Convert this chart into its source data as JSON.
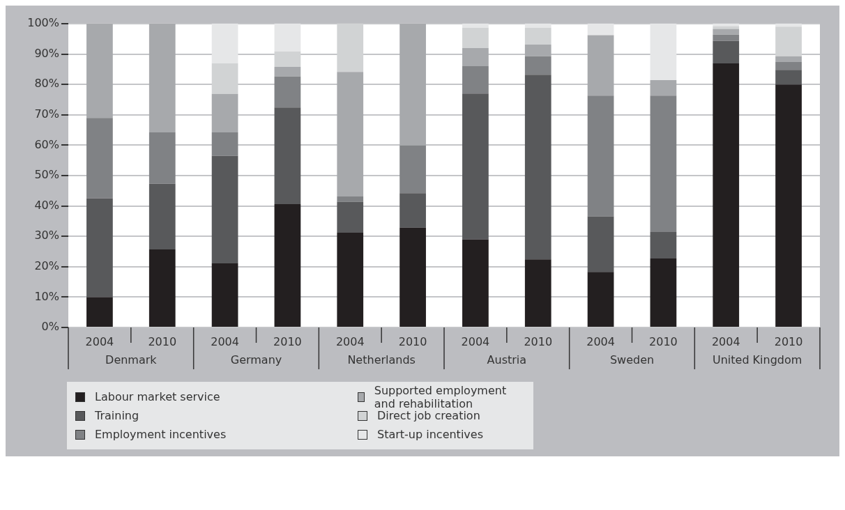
{
  "chart_data": {
    "type": "bar",
    "stacked": true,
    "categories": [
      "2004",
      "2010",
      "2004",
      "2010",
      "2004",
      "2010",
      "2004",
      "2010",
      "2004",
      "2010",
      "2004",
      "2010"
    ],
    "annotations": [
      "Denmark",
      "Germany",
      "Netherlands",
      "Austria",
      "Sweden",
      "United Kingdom"
    ],
    "series": [
      {
        "name": "Labour market service",
        "color": "#231f20",
        "values": [
          10,
          25.7,
          21.1,
          40.6,
          31.2,
          32.9,
          29,
          22.4,
          18.3,
          22.7,
          86.9,
          80
        ]
      },
      {
        "name": "Training",
        "color": "#58595b",
        "values": [
          32.5,
          21.6,
          35.4,
          31.8,
          10.2,
          11.3,
          48,
          60.8,
          18.3,
          8.7,
          7.4,
          4.8
        ]
      },
      {
        "name": "Employment incentives",
        "color": "#808285",
        "values": [
          26.5,
          16.9,
          7.7,
          10.2,
          1.7,
          15.7,
          9,
          6.1,
          39.7,
          44.9,
          2.1,
          2.6
        ]
      },
      {
        "name": "Supported employment and rehabilitation",
        "color": "#a7a9ac",
        "values": [
          31,
          35.8,
          12.7,
          3.2,
          41,
          40.1,
          6,
          3.8,
          19.9,
          5.1,
          1.9,
          1.9
        ]
      },
      {
        "name": "Direct job creation",
        "color": "#d1d3d4",
        "values": [
          0,
          0,
          10.1,
          5.1,
          15.9,
          0,
          6.7,
          5.6,
          0,
          0,
          0.9,
          9.7
        ]
      },
      {
        "name": "Start-up incentives",
        "color": "#e6e7e8",
        "values": [
          0,
          0,
          13,
          9.1,
          0,
          0,
          1.3,
          1.3,
          3.8,
          18.6,
          0.8,
          1
        ]
      }
    ],
    "ylim": [
      0,
      100
    ],
    "yticks": [
      {
        "value": 0,
        "label": "0%"
      },
      {
        "value": 10,
        "label": "10%"
      },
      {
        "value": 20,
        "label": "20%"
      },
      {
        "value": 30,
        "label": "30%"
      },
      {
        "value": 40,
        "label": "40%"
      },
      {
        "value": 50,
        "label": "50%"
      },
      {
        "value": 60,
        "label": "60%"
      },
      {
        "value": 70,
        "label": "70%"
      },
      {
        "value": 80,
        "label": "80%"
      },
      {
        "value": 90,
        "label": "90%"
      },
      {
        "value": 100,
        "label": "100%"
      }
    ],
    "grid": "y",
    "legend": "bottom"
  }
}
